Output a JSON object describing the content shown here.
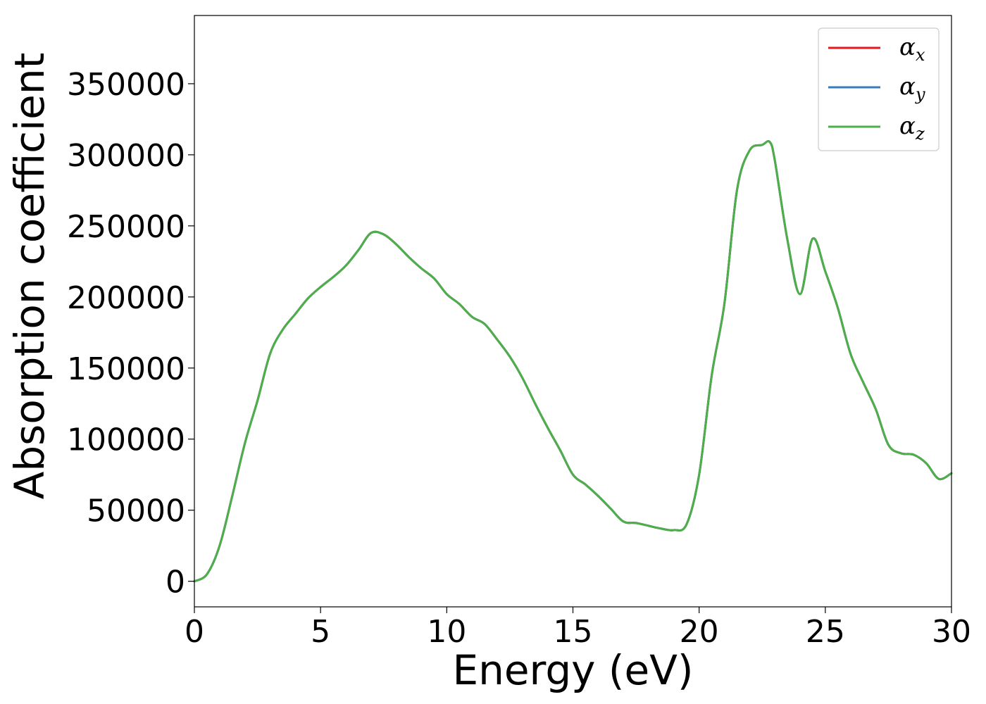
{
  "chart_data": {
    "type": "line",
    "title": "",
    "xlabel": "Energy (eV)",
    "ylabel": "Absorption coefficient",
    "xlim": [
      0,
      30
    ],
    "ylim": [
      -18000,
      398000
    ],
    "xticks": [
      0,
      5,
      10,
      15,
      20,
      25,
      30
    ],
    "xtick_labels": [
      "0",
      "5",
      "10",
      "15",
      "20",
      "25",
      "30"
    ],
    "yticks": [
      0,
      50000,
      100000,
      150000,
      200000,
      250000,
      300000,
      350000
    ],
    "ytick_labels": [
      "0",
      "50000",
      "100000",
      "150000",
      "200000",
      "250000",
      "300000",
      "350000"
    ],
    "grid": false,
    "legend_position": "top-right",
    "x": [
      0,
      0.5,
      1.0,
      1.5,
      2.0,
      2.5,
      3.0,
      3.5,
      4.0,
      4.5,
      5.0,
      5.5,
      6.0,
      6.5,
      7.0,
      7.5,
      8.0,
      8.5,
      9.0,
      9.5,
      10.0,
      10.5,
      11.0,
      11.5,
      12.0,
      12.5,
      13.0,
      13.5,
      14.0,
      14.5,
      15.0,
      15.5,
      16.0,
      16.5,
      17.0,
      17.5,
      18.0,
      18.5,
      19.0,
      19.5,
      20.0,
      20.5,
      21.0,
      21.5,
      22.0,
      22.5,
      22.8,
      23.0,
      23.5,
      24.0,
      24.5,
      25.0,
      25.5,
      26.0,
      26.5,
      27.0,
      27.5,
      28.0,
      28.5,
      29.0,
      29.5,
      30.0
    ],
    "series": [
      {
        "name": "α_x",
        "symbol": "α",
        "subscript": "x",
        "color": "#e41a1c",
        "values": [
          0,
          5000,
          25000,
          60000,
          97000,
          127000,
          160000,
          177000,
          188000,
          199000,
          207000,
          214000,
          222000,
          233000,
          245000,
          244000,
          237000,
          228000,
          220000,
          213000,
          202000,
          195000,
          186000,
          181000,
          170000,
          158000,
          143000,
          125000,
          108000,
          92000,
          75000,
          68000,
          60000,
          51000,
          42000,
          41000,
          39000,
          37000,
          36000,
          40000,
          75000,
          145000,
          195000,
          275000,
          303000,
          307000,
          309000,
          296000,
          240000,
          202000,
          241000,
          218000,
          192000,
          160000,
          140000,
          121000,
          96000,
          90000,
          89000,
          83000,
          72000,
          76000
        ]
      },
      {
        "name": "α_y",
        "symbol": "α",
        "subscript": "y",
        "color": "#377eb8",
        "values": [
          0,
          5000,
          25000,
          60000,
          97000,
          127000,
          160000,
          177000,
          188000,
          199000,
          207000,
          214000,
          222000,
          233000,
          245000,
          244000,
          237000,
          228000,
          220000,
          213000,
          202000,
          195000,
          186000,
          181000,
          170000,
          158000,
          143000,
          125000,
          108000,
          92000,
          75000,
          68000,
          60000,
          51000,
          42000,
          41000,
          39000,
          37000,
          36000,
          40000,
          75000,
          145000,
          195000,
          275000,
          303000,
          307000,
          309000,
          296000,
          240000,
          202000,
          241000,
          218000,
          192000,
          160000,
          140000,
          121000,
          96000,
          90000,
          89000,
          83000,
          72000,
          76000
        ]
      },
      {
        "name": "α_z",
        "symbol": "α",
        "subscript": "z",
        "color": "#4daf4a",
        "values": [
          0,
          5000,
          25000,
          60000,
          97000,
          127000,
          160000,
          177000,
          188000,
          199000,
          207000,
          214000,
          222000,
          233000,
          245000,
          244000,
          237000,
          228000,
          220000,
          213000,
          202000,
          195000,
          186000,
          181000,
          170000,
          158000,
          143000,
          125000,
          108000,
          92000,
          75000,
          68000,
          60000,
          51000,
          42000,
          41000,
          39000,
          37000,
          36000,
          40000,
          75000,
          145000,
          195000,
          275000,
          303000,
          307000,
          309000,
          296000,
          240000,
          202000,
          241000,
          218000,
          192000,
          160000,
          140000,
          121000,
          96000,
          90000,
          89000,
          83000,
          72000,
          76000
        ]
      }
    ]
  }
}
